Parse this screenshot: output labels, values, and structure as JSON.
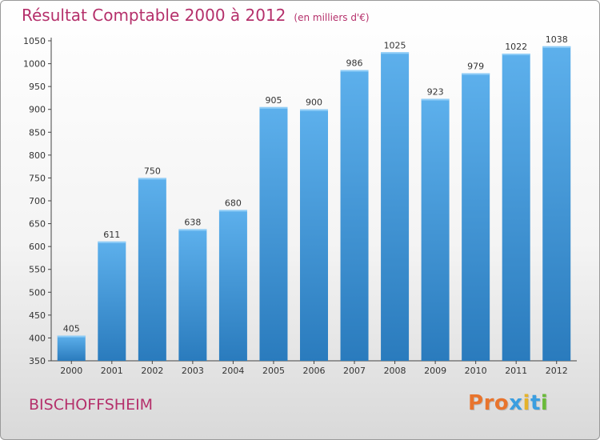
{
  "header": {
    "title": "Résultat Comptable 2000 à 2012",
    "unit": "(en milliers d'€)"
  },
  "footer": {
    "city": "BISCHOFFSHEIM",
    "logo_text": "Proxiti"
  },
  "colors": {
    "title": "#b5306b",
    "bar_top": "#5db0ec",
    "bar_bottom": "#2a7bbd",
    "logo_letters": [
      "#e8742d",
      "#e8742d",
      "#e8742d",
      "#3b9ee0",
      "#e5b22a",
      "#3b9ee0",
      "#6aba3a"
    ]
  },
  "chart_data": {
    "type": "bar",
    "title": "Résultat Comptable 2000 à 2012",
    "subtitle": "(en milliers d'€)",
    "categories": [
      "2000",
      "2001",
      "2002",
      "2003",
      "2004",
      "2005",
      "2006",
      "2007",
      "2008",
      "2009",
      "2010",
      "2011",
      "2012"
    ],
    "values": [
      405,
      611,
      750,
      638,
      680,
      905,
      900,
      986,
      1025,
      923,
      979,
      1022,
      1038
    ],
    "ylim": [
      350,
      1050
    ],
    "yticks": [
      350,
      400,
      450,
      500,
      550,
      600,
      650,
      700,
      750,
      800,
      850,
      900,
      950,
      1000,
      1050
    ],
    "grid": false,
    "data_labels": true
  }
}
